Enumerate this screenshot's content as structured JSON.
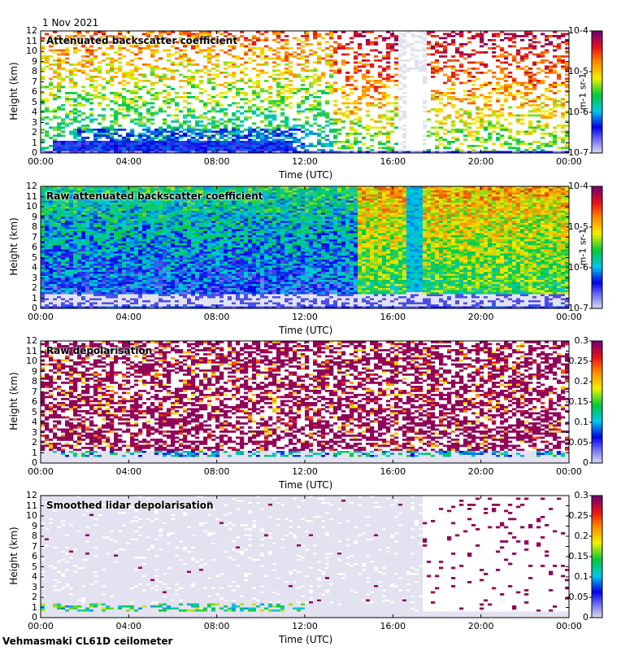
{
  "date": "1 Nov 2021",
  "footer": "Vehmasmaki CL61D ceilometer",
  "chart_data": [
    {
      "type": "heatmap",
      "title": "Attenuated backscatter coefficient",
      "xlabel": "Time (UTC)",
      "ylabel": "Height (km)",
      "x_ticks": [
        "00:00",
        "04:00",
        "08:00",
        "12:00",
        "16:00",
        "20:00",
        "00:00"
      ],
      "y_ticks": [
        "0",
        "1",
        "2",
        "3",
        "4",
        "5",
        "6",
        "7",
        "8",
        "9",
        "10",
        "11",
        "12"
      ],
      "ylim": [
        0,
        12
      ],
      "colorbar": {
        "scale": "log",
        "range": [
          1e-07,
          0.0001
        ],
        "ticks": [
          "10-7",
          "10-6",
          "10-5",
          "10-4"
        ],
        "unit": "m-1 sr-1"
      }
    },
    {
      "type": "heatmap",
      "title": "Raw attenuated backscatter coefficient",
      "xlabel": "Time (UTC)",
      "ylabel": "Height (km)",
      "x_ticks": [
        "00:00",
        "04:00",
        "08:00",
        "12:00",
        "16:00",
        "20:00",
        "00:00"
      ],
      "y_ticks": [
        "0",
        "1",
        "2",
        "3",
        "4",
        "5",
        "6",
        "7",
        "8",
        "9",
        "10",
        "11",
        "12"
      ],
      "ylim": [
        0,
        12
      ],
      "colorbar": {
        "scale": "log",
        "range": [
          1e-07,
          0.0001
        ],
        "ticks": [
          "10-7",
          "10-6",
          "10-5",
          "10-4"
        ],
        "unit": "m-1 sr-1"
      }
    },
    {
      "type": "heatmap",
      "title": "Raw depolarisation",
      "xlabel": "Time (UTC)",
      "ylabel": "Height (km)",
      "x_ticks": [
        "00:00",
        "04:00",
        "08:00",
        "12:00",
        "16:00",
        "20:00",
        "00:00"
      ],
      "y_ticks": [
        "0",
        "1",
        "2",
        "3",
        "4",
        "5",
        "6",
        "7",
        "8",
        "9",
        "10",
        "11",
        "12"
      ],
      "ylim": [
        0,
        12
      ],
      "colorbar": {
        "scale": "linear",
        "range": [
          0,
          0.3
        ],
        "ticks": [
          "0",
          "0.05",
          "0.1",
          "0.15",
          "0.2",
          "0.25",
          "0.3"
        ],
        "unit": ""
      }
    },
    {
      "type": "heatmap",
      "title": "Smoothed lidar depolarisation",
      "xlabel": "Time (UTC)",
      "ylabel": "Height (km)",
      "x_ticks": [
        "00:00",
        "04:00",
        "08:00",
        "12:00",
        "16:00",
        "20:00",
        "00:00"
      ],
      "y_ticks": [
        "0",
        "1",
        "2",
        "3",
        "4",
        "5",
        "6",
        "7",
        "8",
        "9",
        "10",
        "11",
        "12"
      ],
      "ylim": [
        0,
        12
      ],
      "colorbar": {
        "scale": "linear",
        "range": [
          0,
          0.3
        ],
        "ticks": [
          "0",
          "0.05",
          "0.1",
          "0.15",
          "0.2",
          "0.25",
          "0.3"
        ],
        "unit": ""
      }
    }
  ]
}
